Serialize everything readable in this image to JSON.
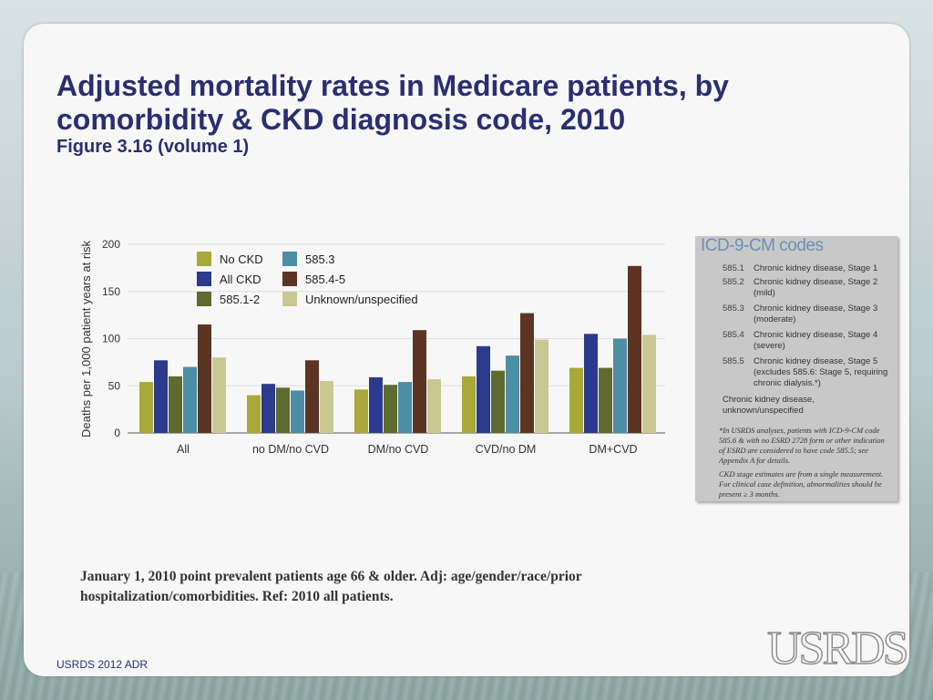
{
  "slide": {
    "title": "Adjusted mortality rates in Medicare patients, by comorbidity & CKD diagnosis code, 2010",
    "subtitle": "Figure 3.16 (volume 1)",
    "footnote": "January 1, 2010 point prevalent patients age 66 & older. Adj: age/gender/race/prior hospitalization/comorbidities. Ref: 2010 all patients.",
    "footer": "USRDS 2012 ADR",
    "logo": "USRDS"
  },
  "chart_data": {
    "type": "bar",
    "title": "",
    "xlabel": "",
    "ylabel": "Deaths per 1,000 patient years at risk",
    "ylim": [
      0,
      200
    ],
    "yticks": [
      0,
      50,
      100,
      150,
      200
    ],
    "grid": true,
    "legend_position": "top",
    "categories": [
      "All",
      "no DM/no CVD",
      "DM/no CVD",
      "CVD/no DM",
      "DM+CVD"
    ],
    "series": [
      {
        "name": "No CKD",
        "color": "#a9a83a",
        "values": [
          54,
          40,
          46,
          60,
          69
        ]
      },
      {
        "name": "All CKD",
        "color": "#2b3a8c",
        "values": [
          77,
          52,
          59,
          92,
          105
        ]
      },
      {
        "name": "585.1-2",
        "color": "#5f6a2f",
        "values": [
          60,
          48,
          51,
          66,
          69
        ]
      },
      {
        "name": "585.3",
        "color": "#4c8ea3",
        "values": [
          70,
          45,
          54,
          82,
          100
        ]
      },
      {
        "name": "585.4-5",
        "color": "#5c3423",
        "values": [
          115,
          77,
          109,
          127,
          177
        ]
      },
      {
        "name": "Unknown/unspecified",
        "color": "#c9c893",
        "values": [
          80,
          55,
          57,
          99,
          104
        ]
      }
    ]
  },
  "icd_panel": {
    "title": "ICD-9-CM codes",
    "rows": [
      {
        "code": "585.1",
        "desc": "Chronic kidney disease, Stage 1"
      },
      {
        "code": "585.2",
        "desc": "Chronic kidney disease, Stage 2 (mild)"
      },
      {
        "code": "585.3",
        "desc": "Chronic kidney disease, Stage 3 (moderate)"
      },
      {
        "code": "585.4",
        "desc": "Chronic kidney disease, Stage 4 (severe)"
      },
      {
        "code": "585.5",
        "desc": "Chronic kidney disease, Stage 5 (excludes 585.6: Stage 5, requiring chronic dialysis.*)"
      }
    ],
    "unknown": "Chronic kidney disease, unknown/unspecified",
    "note1": "*In USRDS analyses, patients with ICD-9-CM code 585.6 & with no ESRD 2728 form or other indication of ESRD are considered to have code 585.5; see Appendix A for details.",
    "note2": "CKD stage estimates are from a single measurement. For clinical case definition, abnormalities should be present ≥ 3 months."
  }
}
